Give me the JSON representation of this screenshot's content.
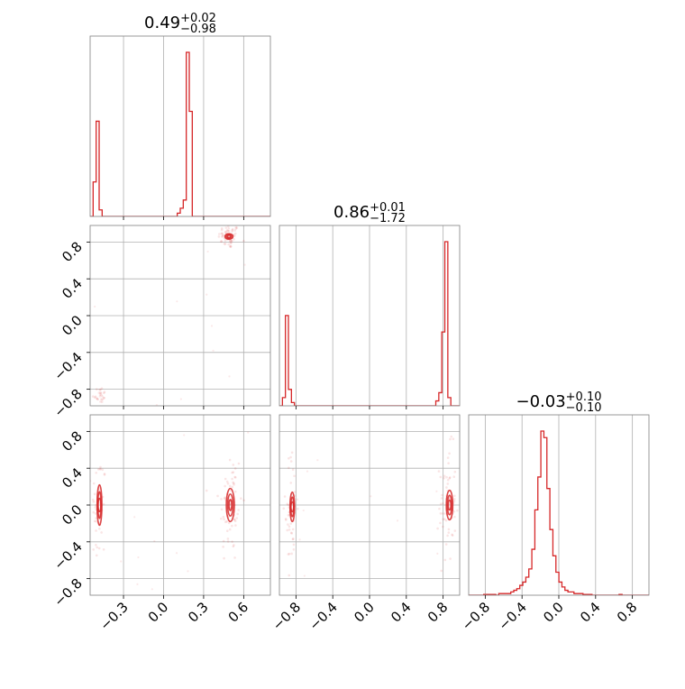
{
  "chart_data": {
    "type": "corner",
    "color": "#d62728",
    "titles": [
      {
        "main": "0.49",
        "sup": "+0.02",
        "sub": "−0.98"
      },
      {
        "main": "0.86",
        "sup": "+0.01",
        "sub": "−1.72"
      },
      {
        "main": "−0.03",
        "sup": "+0.10",
        "sub": "−0.10"
      }
    ],
    "ranges": [
      [
        -0.55,
        0.8
      ],
      [
        -0.98,
        0.98
      ],
      [
        -0.98,
        0.98
      ]
    ],
    "ticks": [
      {
        "values": [
          -0.3,
          0.0,
          0.3,
          0.6
        ],
        "labels": [
          "−0.3",
          "0.0",
          "0.3",
          "0.6"
        ]
      },
      {
        "values": [
          -0.8,
          -0.4,
          0.0,
          0.4,
          0.8
        ],
        "labels": [
          "−0.8",
          "−0.4",
          "0.0",
          "0.4",
          "0.8"
        ]
      },
      {
        "values": [
          -0.8,
          -0.4,
          0.0,
          0.4,
          0.8
        ],
        "labels": [
          "−0.8",
          "−0.4",
          "0.0",
          "0.4",
          "0.8"
        ]
      }
    ],
    "grid": true,
    "histograms": [
      {
        "edges_start": -0.55,
        "bin_width": 0.0225,
        "counts": [
          0,
          0.21,
          0.58,
          0.04,
          0,
          0,
          0,
          0,
          0,
          0,
          0,
          0,
          0,
          0,
          0,
          0,
          0,
          0,
          0,
          0,
          0,
          0,
          0,
          0,
          0,
          0,
          0,
          0,
          0,
          0.02,
          0.05,
          0.1,
          1.0,
          0.64,
          0,
          0,
          0,
          0,
          0,
          0,
          0,
          0,
          0,
          0,
          0,
          0,
          0,
          0,
          0,
          0,
          0,
          0,
          0,
          0,
          0,
          0,
          0,
          0,
          0,
          0
        ]
      },
      {
        "edges_start": -0.98,
        "bin_width": 0.0327,
        "counts": [
          0,
          0.05,
          0.55,
          0.1,
          0.02,
          0,
          0,
          0,
          0,
          0,
          0,
          0,
          0,
          0,
          0,
          0,
          0,
          0,
          0,
          0,
          0,
          0,
          0,
          0,
          0,
          0,
          0,
          0,
          0,
          0,
          0,
          0,
          0,
          0,
          0,
          0,
          0,
          0,
          0,
          0,
          0,
          0,
          0,
          0,
          0,
          0,
          0,
          0,
          0,
          0,
          0,
          0,
          0.03,
          0.08,
          0.45,
          1.0,
          0.05,
          0,
          0,
          0
        ]
      },
      {
        "edges_start": -0.98,
        "bin_width": 0.0327,
        "counts": [
          0,
          0,
          0,
          0,
          0,
          0.005,
          0.005,
          0.005,
          0.005,
          0,
          0.01,
          0.01,
          0.01,
          0.01,
          0.02,
          0.03,
          0.04,
          0.06,
          0.08,
          0.11,
          0.16,
          0.28,
          0.52,
          0.72,
          1.0,
          0.96,
          0.65,
          0.4,
          0.24,
          0.14,
          0.08,
          0.05,
          0.03,
          0.02,
          0.02,
          0.01,
          0.01,
          0.01,
          0.005,
          0.005,
          0.005,
          0,
          0,
          0,
          0,
          0,
          0,
          0,
          0,
          0,
          0.005,
          0,
          0,
          0,
          0,
          0,
          0,
          0,
          0,
          0
        ]
      }
    ],
    "scatter_clusters": [
      {
        "panel": [
          1,
          0
        ],
        "clusters": [
          {
            "x": 0.49,
            "y": 0.86,
            "sx": 0.018,
            "sy": 0.03,
            "n": 60
          },
          {
            "x": -0.48,
            "y": -0.86,
            "sx": 0.012,
            "sy": 0.02,
            "n": 25
          }
        ]
      },
      {
        "panel": [
          2,
          0
        ],
        "clusters": [
          {
            "x": 0.5,
            "y": 0.0,
            "sx": 0.02,
            "sy": 0.15,
            "n": 70
          },
          {
            "x": -0.485,
            "y": -0.05,
            "sx": 0.012,
            "sy": 0.14,
            "n": 45
          }
        ]
      },
      {
        "panel": [
          2,
          1
        ],
        "clusters": [
          {
            "x": 0.85,
            "y": 0.0,
            "sx": 0.02,
            "sy": 0.14,
            "n": 70
          },
          {
            "x": -0.85,
            "y": -0.05,
            "sx": 0.015,
            "sy": 0.14,
            "n": 50
          }
        ]
      }
    ],
    "contours": [
      {
        "panel": [
          1,
          0
        ],
        "blobs": [
          {
            "x": 0.49,
            "y": 0.86,
            "rx": 0.03,
            "ry": 0.03
          }
        ]
      },
      {
        "panel": [
          2,
          0
        ],
        "blobs": [
          {
            "x": 0.5,
            "y": 0.0,
            "rx": 0.03,
            "ry": 0.18
          },
          {
            "x": -0.48,
            "y": 0.0,
            "rx": 0.018,
            "ry": 0.22
          }
        ]
      },
      {
        "panel": [
          2,
          1
        ],
        "blobs": [
          {
            "x": 0.87,
            "y": 0.0,
            "rx": 0.035,
            "ry": 0.16
          },
          {
            "x": -0.84,
            "y": -0.02,
            "rx": 0.025,
            "ry": 0.16
          }
        ]
      }
    ]
  }
}
